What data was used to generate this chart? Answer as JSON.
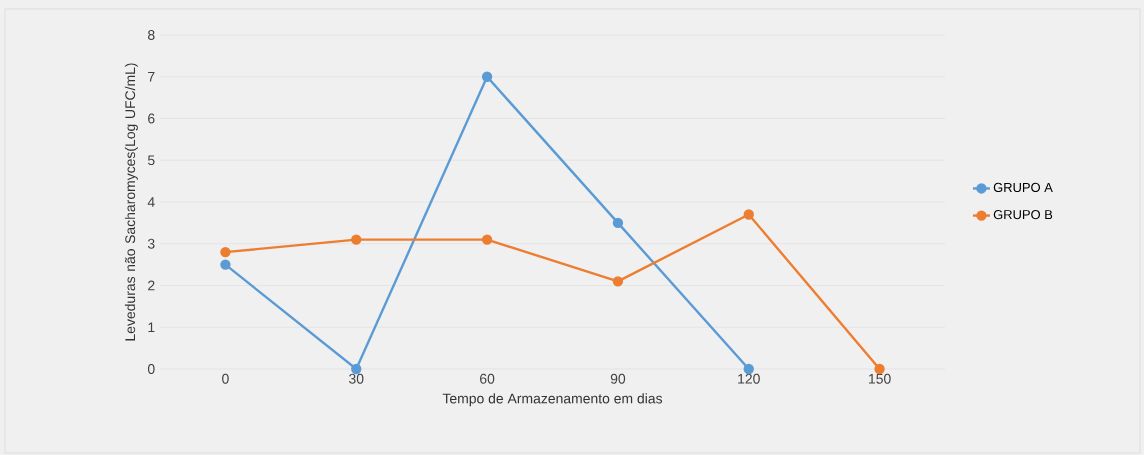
{
  "chart_data": {
    "type": "line",
    "xlabel": "Tempo de Armazenamento em dias",
    "ylabel": "Leveduras não Sacharomyces(Log UFC/mL)",
    "categories": [
      "0",
      "30",
      "60",
      "90",
      "120",
      "150"
    ],
    "series": [
      {
        "name": "GRUPO A",
        "color": "#5b9bd5",
        "values": [
          2.5,
          0,
          7,
          3.5,
          0,
          null
        ]
      },
      {
        "name": "GRUPO B",
        "color": "#ed7d31",
        "values": [
          2.8,
          3.1,
          3.1,
          2.1,
          3.7,
          0
        ]
      }
    ],
    "ylim": [
      0,
      8
    ],
    "yticks": [
      0,
      1,
      2,
      3,
      4,
      5,
      6,
      7,
      8
    ],
    "grid": "y",
    "legend": "right",
    "marker": "circle",
    "line_style": "solid"
  }
}
